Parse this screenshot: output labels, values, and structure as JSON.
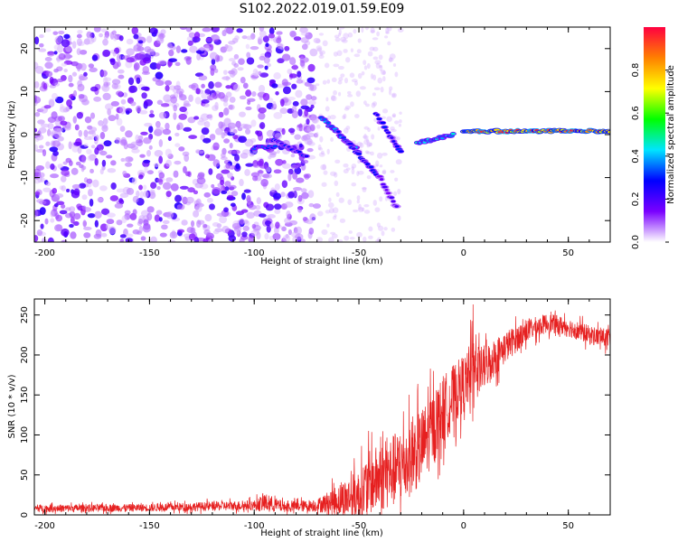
{
  "title": "S102.2022.019.01.59.E09",
  "colors": {
    "snr_line": "#e62020",
    "frame": "#000000",
    "spec_low": "#d9b3ff",
    "spec_mid": "#7a00ff",
    "spec_peak": "#ff0040"
  },
  "chart_data": [
    {
      "type": "heatmap",
      "name": "spectrogram",
      "xlabel": "Height of straight line (km)",
      "ylabel": "Frequency (Hz)",
      "xlim": [
        -205,
        70
      ],
      "ylim": [
        -25,
        25
      ],
      "xticks": [
        -200,
        -150,
        -100,
        -50,
        0,
        50
      ],
      "yticks": [
        -20,
        -10,
        0,
        10,
        20
      ],
      "colorbar": {
        "label": "Normalized spectral amplitude",
        "range": [
          0,
          1
        ],
        "ticks": [
          "0.0",
          "0.2",
          "0.4",
          "0.6",
          "0.8"
        ],
        "tick_values": [
          0,
          0.2,
          0.4,
          0.6,
          0.8
        ],
        "colormap": [
          "#ffffff",
          "#7a00ff",
          "#0000ff",
          "#00e5ff",
          "#00ff00",
          "#ffff00",
          "#ff8000",
          "#ff0040"
        ]
      },
      "ridges": [
        {
          "x": [
            -100,
            -90
          ],
          "y": [
            -3,
            -3
          ],
          "amp": 0.35
        },
        {
          "x": [
            -92,
            -75
          ],
          "y": [
            -1,
            -5
          ],
          "amp": 0.3
        },
        {
          "x": [
            -68,
            -50
          ],
          "y": [
            4,
            -4
          ],
          "amp": 0.4
        },
        {
          "x": [
            -55,
            -40
          ],
          "y": [
            -2,
            -10
          ],
          "amp": 0.3
        },
        {
          "x": [
            -42,
            -30
          ],
          "y": [
            5,
            -4
          ],
          "amp": 0.3
        },
        {
          "x": [
            -40,
            -32
          ],
          "y": [
            -10,
            -17
          ],
          "amp": 0.2
        },
        {
          "x": [
            -22,
            -5
          ],
          "y": [
            -2,
            0
          ],
          "amp": 0.45
        },
        {
          "x": [
            0,
            70
          ],
          "y": [
            0.8,
            0.8
          ],
          "amp": 0.95
        }
      ]
    },
    {
      "type": "line",
      "name": "snr",
      "xlabel": "Height of straight line (km)",
      "ylabel": "SNR (10 * v/v)",
      "xlim": [
        -205,
        70
      ],
      "ylim": [
        0,
        270
      ],
      "xticks": [
        -200,
        -150,
        -100,
        -50,
        0,
        50
      ],
      "yticks": [
        0,
        50,
        100,
        150,
        200,
        250
      ],
      "envelope": {
        "x": [
          -205,
          -150,
          -100,
          -95,
          -85,
          -70,
          -50,
          -45,
          -30,
          -20,
          -10,
          0,
          10,
          20,
          30,
          40,
          50,
          60,
          70
        ],
        "y": [
          8,
          9,
          12,
          15,
          10,
          12,
          25,
          40,
          60,
          85,
          130,
          165,
          185,
          210,
          230,
          240,
          235,
          225,
          220
        ],
        "noise": [
          6,
          6,
          8,
          15,
          8,
          10,
          40,
          50,
          60,
          60,
          55,
          45,
          35,
          25,
          18,
          15,
          15,
          15,
          15
        ]
      }
    }
  ]
}
